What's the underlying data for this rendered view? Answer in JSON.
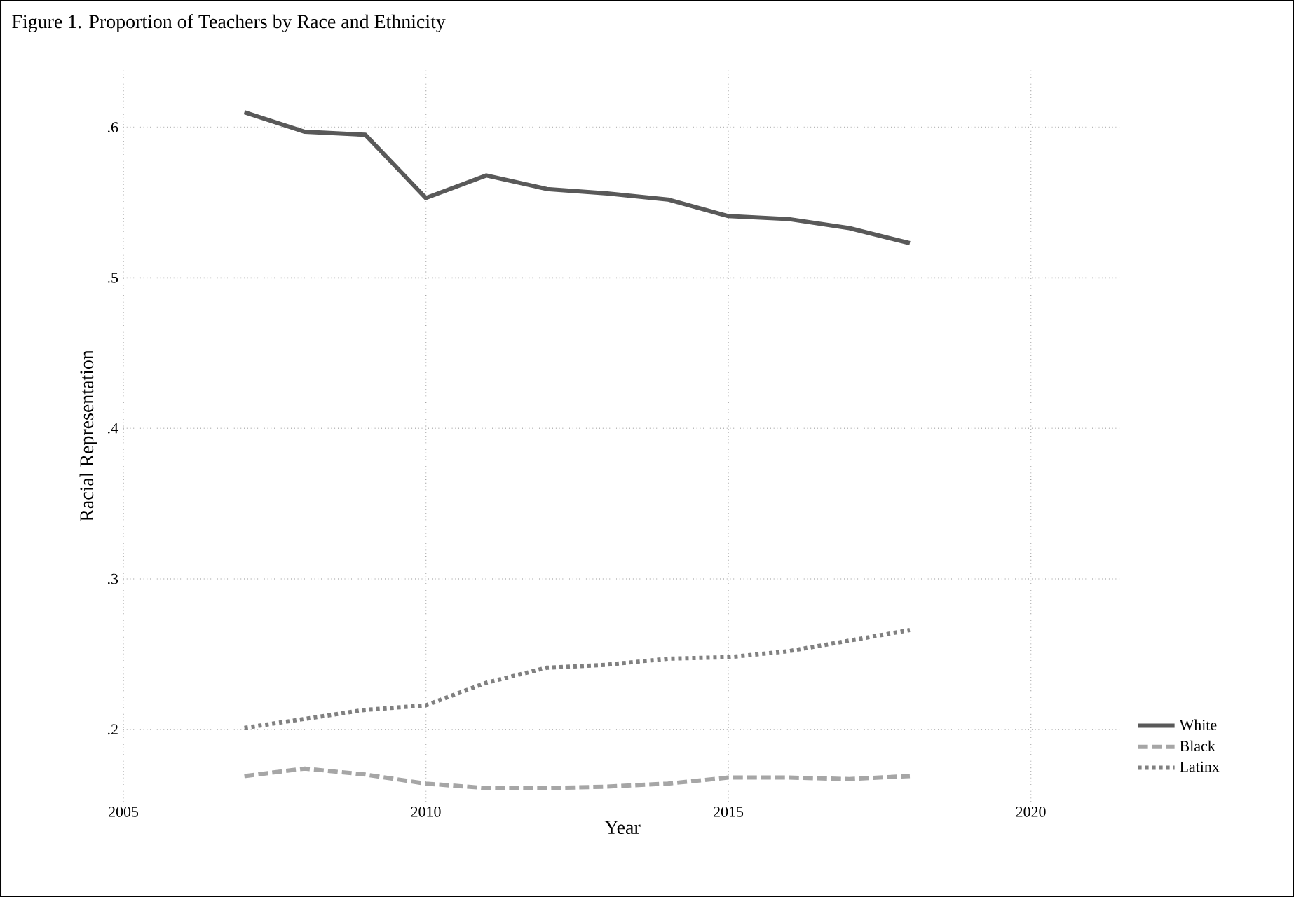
{
  "chart_data": {
    "type": "line",
    "title": "Figure 1. Proportion of Teachers by Race and Ethnicity",
    "xlabel": "Year",
    "ylabel": "Racial Representation",
    "x": [
      2007,
      2008,
      2009,
      2010,
      2011,
      2012,
      2013,
      2014,
      2015,
      2016,
      2017,
      2018
    ],
    "series": [
      {
        "name": "White",
        "color": "#595959",
        "line_style": "solid",
        "values": [
          0.61,
          0.597,
          0.595,
          0.553,
          0.568,
          0.559,
          0.556,
          0.552,
          0.541,
          0.539,
          0.533,
          0.523
        ]
      },
      {
        "name": "Black",
        "color": "#a6a6a6",
        "line_style": "dashed",
        "values": [
          0.169,
          0.174,
          0.17,
          0.164,
          0.161,
          0.161,
          0.162,
          0.164,
          0.168,
          0.168,
          0.167,
          0.169
        ]
      },
      {
        "name": "Latinx",
        "color": "#808080",
        "line_style": "dotted",
        "values": [
          0.201,
          0.207,
          0.213,
          0.216,
          0.231,
          0.241,
          0.243,
          0.247,
          0.248,
          0.252,
          0.259,
          0.266
        ]
      }
    ],
    "xlim": [
      2005,
      2021.5
    ],
    "ylim": [
      0.152,
      0.638
    ],
    "xticks": [
      2005,
      2010,
      2015,
      2020
    ],
    "yticks": [
      {
        "value": 0.2,
        "label": ".2"
      },
      {
        "value": 0.3,
        "label": ".3"
      },
      {
        "value": 0.4,
        "label": ".4"
      },
      {
        "value": 0.5,
        "label": ".5"
      },
      {
        "value": 0.6,
        "label": ".6"
      }
    ],
    "grid": true,
    "legend": "bottom right",
    "marker": "none"
  }
}
